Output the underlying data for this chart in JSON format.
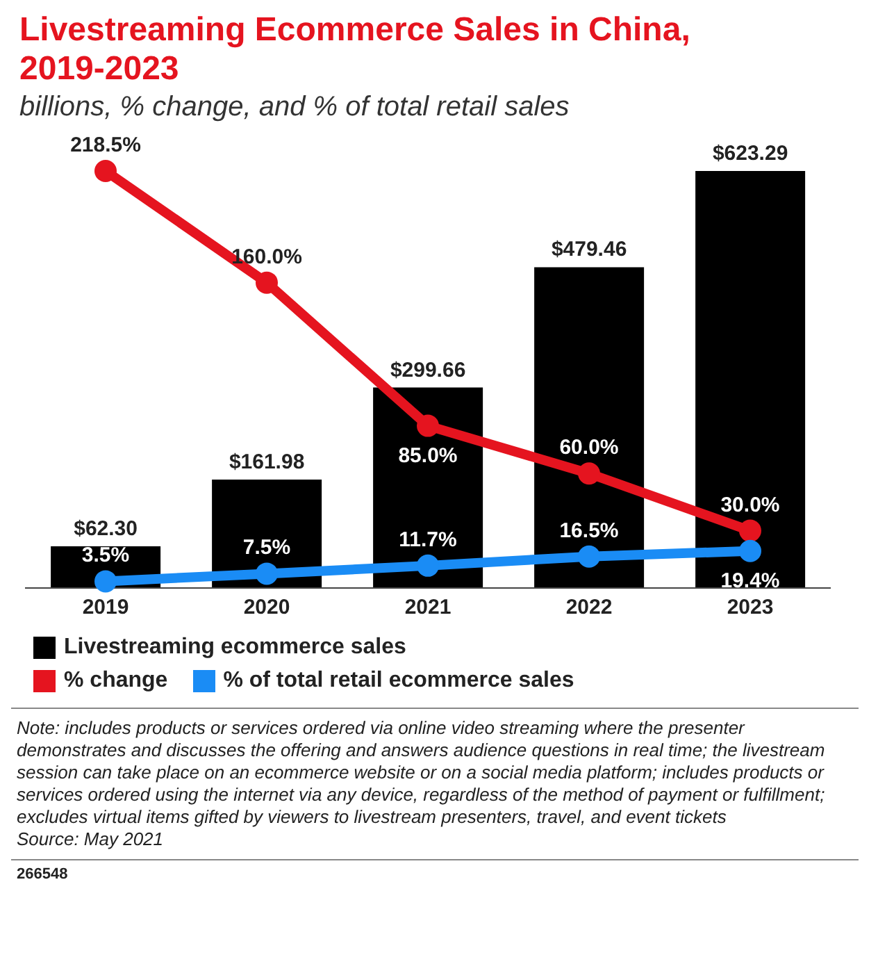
{
  "chart_data": {
    "type": "bar",
    "title": "Livestreaming Ecommerce Sales in China, 2019-2023",
    "subtitle": "billions, % change, and % of total retail sales",
    "categories": [
      "2019",
      "2020",
      "2021",
      "2022",
      "2023"
    ],
    "series": [
      {
        "name": "Livestreaming ecommerce sales",
        "color": "#000000",
        "values": [
          62.3,
          161.98,
          299.66,
          479.46,
          623.29
        ],
        "value_labels": [
          "$62.30",
          "$161.98",
          "$299.66",
          "$479.46",
          "$623.29"
        ]
      },
      {
        "name": "% change",
        "type": "line",
        "axis": "y2",
        "color": "#e5141f",
        "values": [
          218.5,
          160.0,
          85.0,
          60.0,
          30.0
        ],
        "value_labels": [
          "218.5%",
          "160.0%",
          "85.0%",
          "60.0%",
          "30.0%"
        ]
      },
      {
        "name": "% of total retail ecommerce sales",
        "type": "line",
        "axis": "y2",
        "color": "#1a8cf5",
        "values": [
          3.5,
          7.5,
          11.7,
          16.5,
          19.4
        ],
        "value_labels": [
          "3.5%",
          "7.5%",
          "11.7%",
          "16.5%",
          "19.4%"
        ]
      }
    ],
    "legend": "bottom",
    "marker": "circle",
    "tick_labels": "x",
    "annotations": [
      "Note: includes products or services ordered via online video streaming where the presenter demonstrates and discusses the offering and answers audience questions in real time; the livestream session can take place on an ecommerce website or on a social media platform; includes products or services ordered using the internet via any device, regardless of the method of payment or fulfillment; excludes virtual items gifted by viewers to livestream presenters, travel, and event tickets",
      "Source: May 2021",
      "266548"
    ]
  }
}
